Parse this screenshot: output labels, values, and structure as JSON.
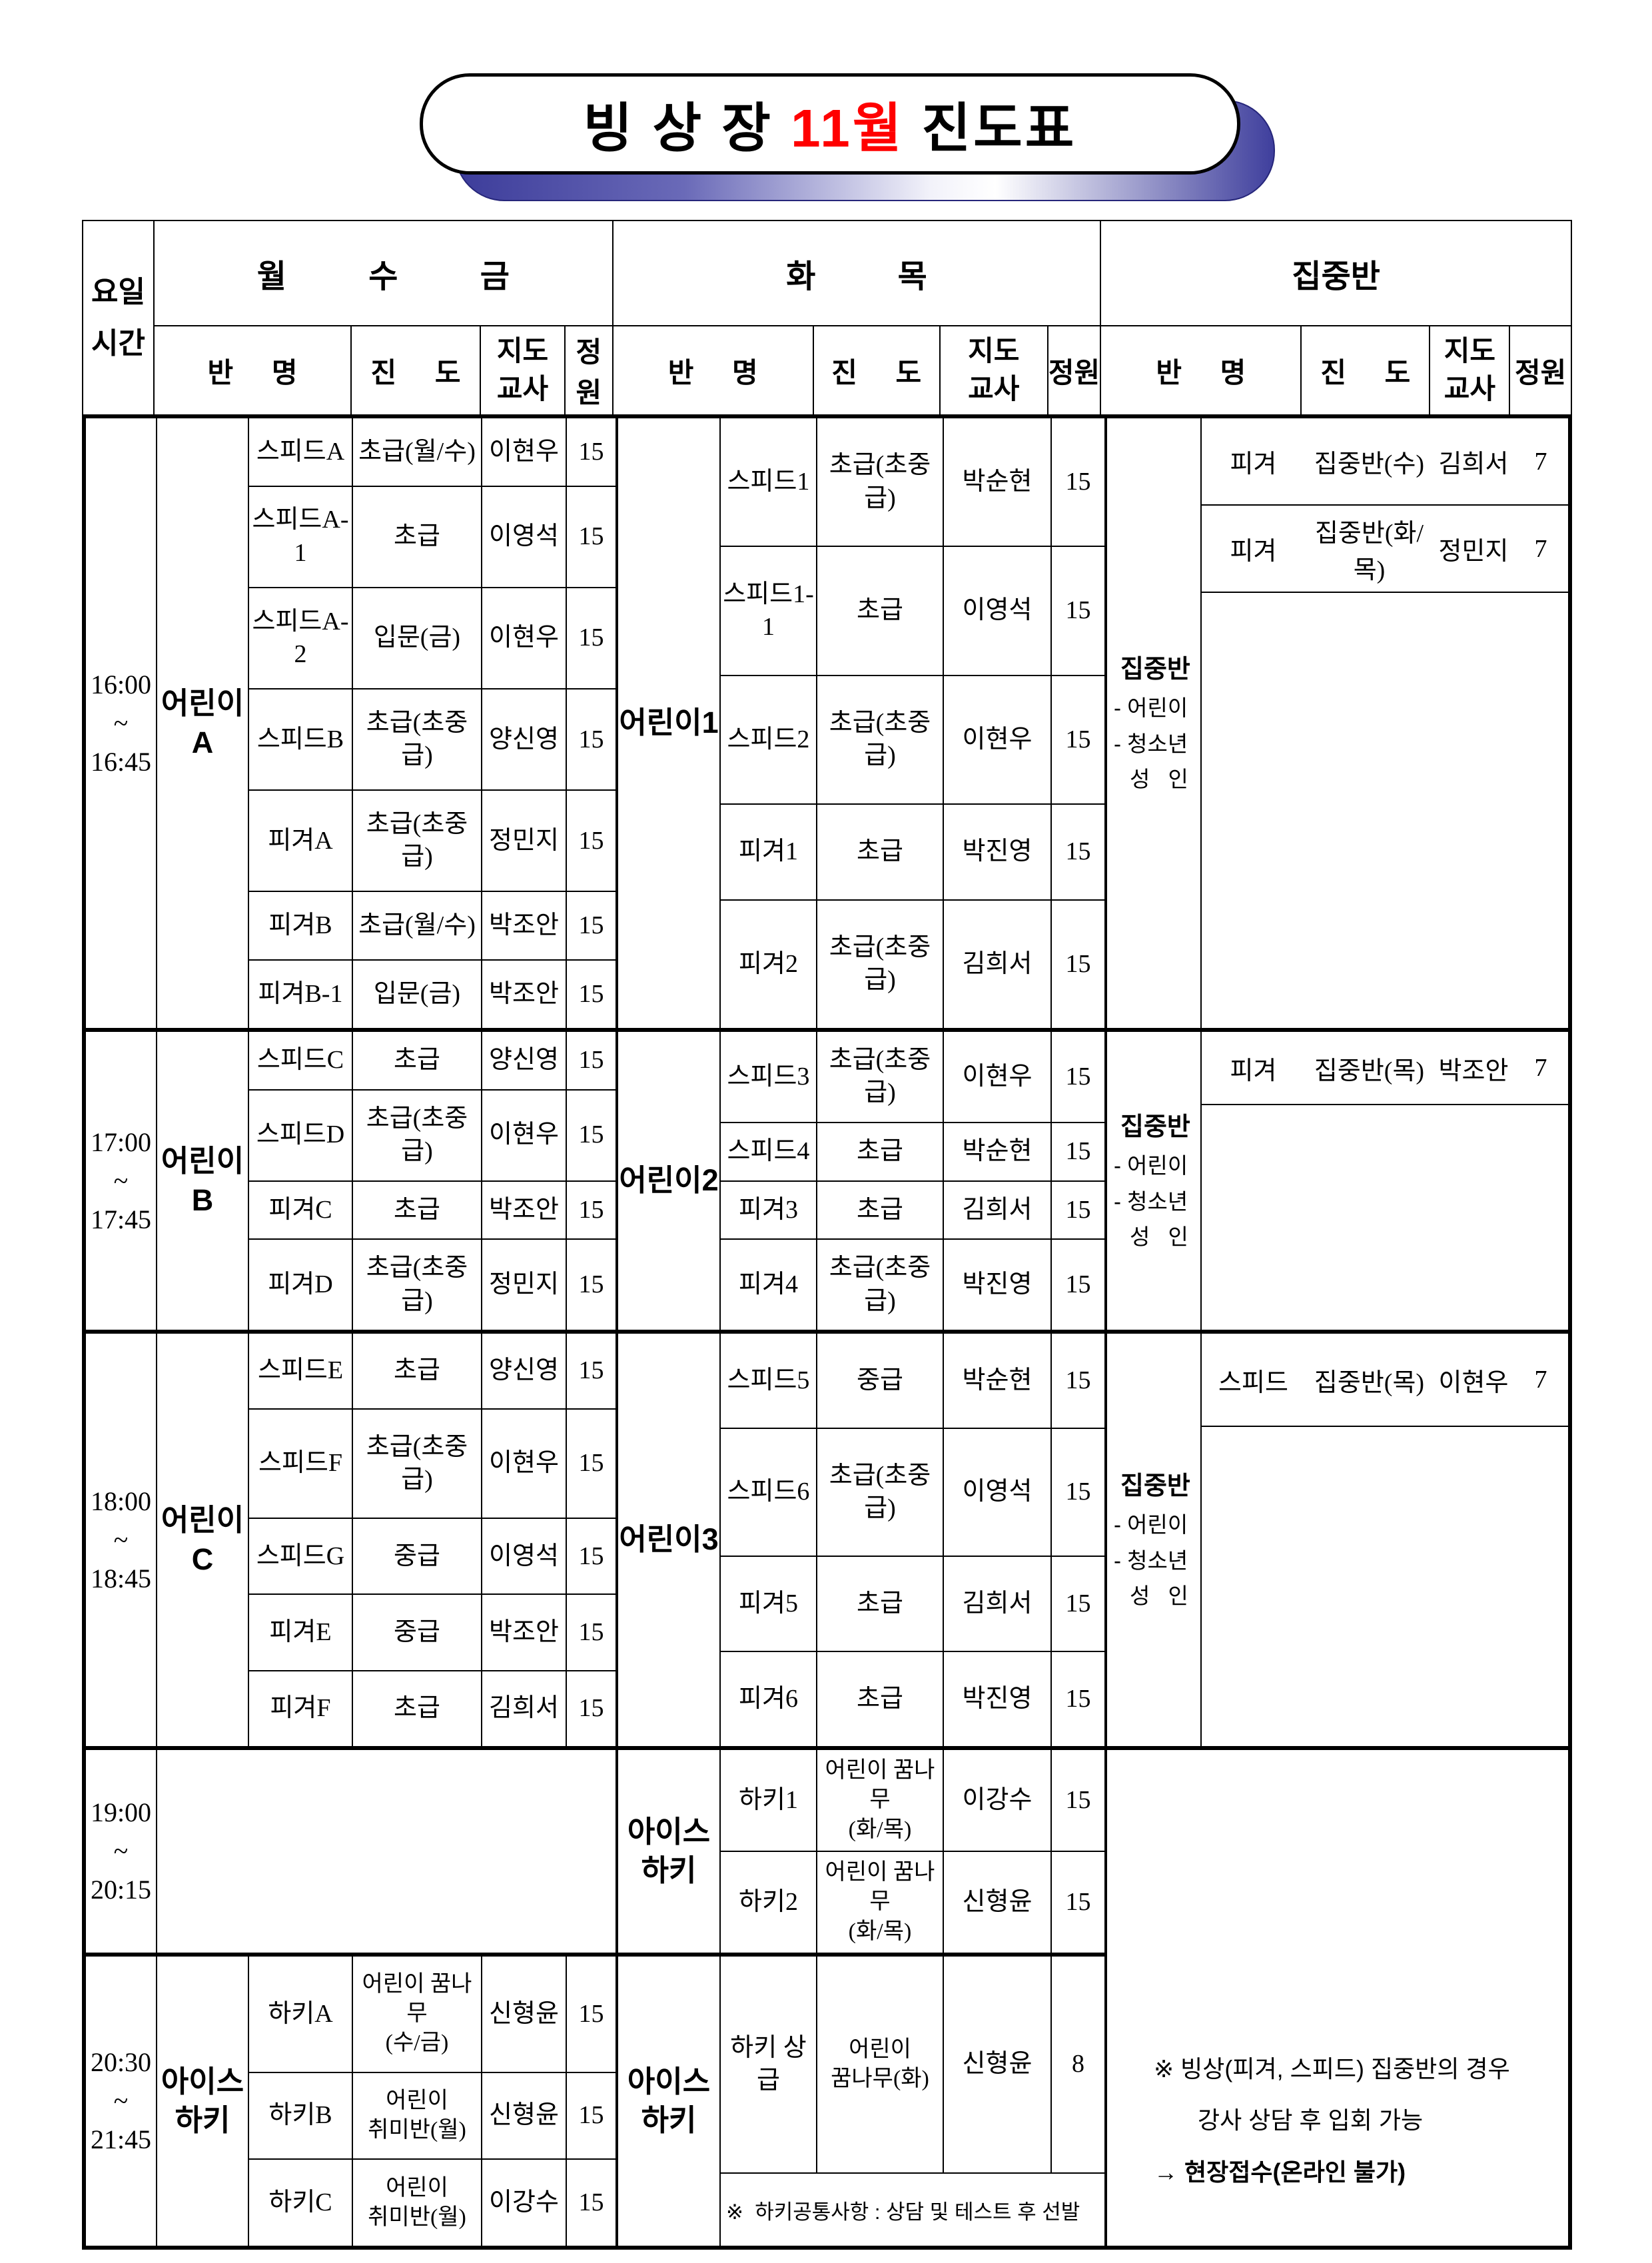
{
  "title": {
    "prefix": "빙 상 장 ",
    "month": "11월",
    "suffix": " 진도표",
    "month_color": "#ff0000",
    "shadow_color": "#3c3c9a"
  },
  "header": {
    "corner": "요일\n시간",
    "groups": [
      {
        "label": "월 수 금"
      },
      {
        "label": "화 목"
      },
      {
        "label": "집중반"
      }
    ],
    "sub": {
      "class_name": "반 명",
      "progress": "진 도",
      "teacher": "지도\n교사",
      "capacity": "정원"
    }
  },
  "focus_label": {
    "title": "집중반",
    "lines": [
      "- 어린이",
      "- 청소년",
      "성  인"
    ]
  },
  "blocks": [
    {
      "time": "16:00\n~\n16:45",
      "g1": {
        "label": "어린이A",
        "rows": [
          [
            "스피드A",
            "초급(월/수)",
            "이현우",
            "15"
          ],
          [
            "스피드A-1",
            "초급",
            "이영석",
            "15"
          ],
          [
            "스피드A-2",
            "입문(금)",
            "이현우",
            "15"
          ],
          [
            "스피드B",
            "초급(초중급)",
            "양신영",
            "15"
          ],
          [
            "피겨A",
            "초급(초중급)",
            "정민지",
            "15"
          ],
          [
            "피겨B",
            "초급(월/수)",
            "박조안",
            "15"
          ],
          [
            "피겨B-1",
            "입문(금)",
            "박조안",
            "15"
          ]
        ]
      },
      "g2": {
        "label": "어린이1",
        "rows": [
          [
            "스피드1",
            "초급(초중급)",
            "박순현",
            "15"
          ],
          [
            "스피드1-1",
            "초급",
            "이영석",
            "15"
          ],
          [
            "스피드2",
            "초급(초중급)",
            "이현우",
            "15"
          ],
          [
            "피겨1",
            "초급",
            "박진영",
            "15"
          ],
          [
            "피겨2",
            "초급(초중급)",
            "김희서",
            "15"
          ]
        ]
      },
      "g3": {
        "rows": [
          [
            "피겨",
            "집중반(수)",
            "김희서",
            "7"
          ],
          [
            "피겨",
            "집중반(화/목)",
            "정민지",
            "7"
          ]
        ]
      }
    },
    {
      "time": "17:00\n~\n17:45",
      "g1": {
        "label": "어린이B",
        "rows": [
          [
            "스피드C",
            "초급",
            "양신영",
            "15"
          ],
          [
            "스피드D",
            "초급(초중급)",
            "이현우",
            "15"
          ],
          [
            "피겨C",
            "초급",
            "박조안",
            "15"
          ],
          [
            "피겨D",
            "초급(초중급)",
            "정민지",
            "15"
          ]
        ]
      },
      "g2": {
        "label": "어린이2",
        "rows": [
          [
            "스피드3",
            "초급(초중급)",
            "이현우",
            "15"
          ],
          [
            "스피드4",
            "초급",
            "박순현",
            "15"
          ],
          [
            "피겨3",
            "초급",
            "김희서",
            "15"
          ],
          [
            "피겨4",
            "초급(초중급)",
            "박진영",
            "15"
          ]
        ]
      },
      "g3": {
        "rows": [
          [
            "피겨",
            "집중반(목)",
            "박조안",
            "7"
          ]
        ]
      }
    },
    {
      "time": "18:00\n~\n18:45",
      "g1": {
        "label": "어린이C",
        "rows": [
          [
            "스피드E",
            "초급",
            "양신영",
            "15"
          ],
          [
            "스피드F",
            "초급(초중급)",
            "이현우",
            "15"
          ],
          [
            "스피드G",
            "중급",
            "이영석",
            "15"
          ],
          [
            "피겨E",
            "중급",
            "박조안",
            "15"
          ],
          [
            "피겨F",
            "초급",
            "김희서",
            "15"
          ]
        ]
      },
      "g2": {
        "label": "어린이3",
        "rows": [
          [
            "스피드5",
            "중급",
            "박순현",
            "15"
          ],
          [
            "스피드6",
            "초급(초중급)",
            "이영석",
            "15"
          ],
          [
            "피겨5",
            "초급",
            "김희서",
            "15"
          ],
          [
            "피겨6",
            "초급",
            "박진영",
            "15"
          ]
        ]
      },
      "g3": {
        "rows": [
          [
            "스피드",
            "집중반(목)",
            "이현우",
            "7"
          ]
        ]
      }
    },
    {
      "time": "19:00\n~\n20:15",
      "g1": null,
      "g2": {
        "label": "아이스\n하키",
        "rows": [
          [
            "하키1",
            "어린이 꿈나무\n(화/목)",
            "이강수",
            "15"
          ],
          [
            "하키2",
            "어린이 꿈나무\n(화/목)",
            "신형윤",
            "15"
          ]
        ]
      },
      "g3": null
    },
    {
      "time": "20:30\n~\n21:45",
      "g1": {
        "label": "아이스\n하키",
        "rows": [
          [
            "하키A",
            "어린이 꿈나무\n(수/금)",
            "신형윤",
            "15"
          ],
          [
            "하키B",
            "어린이\n취미반(월)",
            "신형윤",
            "15"
          ],
          [
            "하키C",
            "어린이\n취미반(월)",
            "이강수",
            "15"
          ]
        ]
      },
      "g2": {
        "label": "아이스\n하키",
        "rows": [
          [
            "하키 상급",
            "어린이\n꿈나무(화)",
            "신형윤",
            "8"
          ]
        ],
        "note": "※  하키공통사항 : 상담 및 테스트 후 선발"
      },
      "g3": null
    }
  ],
  "notes": {
    "focus_line1": "※  빙상(피겨, 스피드) 집중반의 경우",
    "focus_line2": "강사 상담 후 입회 가능",
    "focus_arrow": "→ ",
    "focus_emphasis": "현장접수(온라인 불가)"
  }
}
